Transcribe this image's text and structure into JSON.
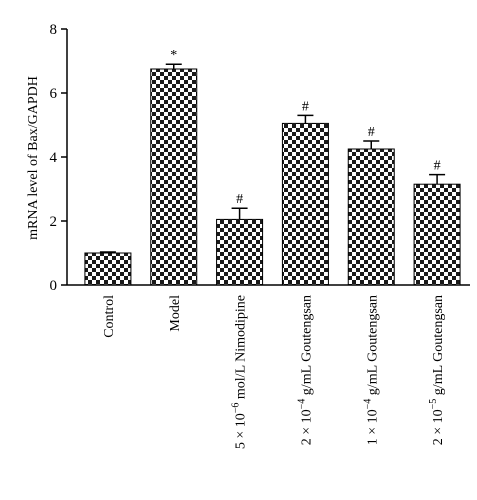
{
  "chart_data": {
    "type": "bar",
    "title": "",
    "xlabel": "",
    "ylabel": "mRNA level of Bax/GAPDH",
    "ylim": [
      0,
      8
    ],
    "yticks": [
      "0",
      "2",
      "4",
      "6",
      "8"
    ],
    "grid": false,
    "legend": "none",
    "bar_fill": "checkerboard",
    "colors": {
      "dark": "#1a1a1a",
      "light": "#ffffff",
      "axis": "#000000"
    },
    "categories": [
      {
        "label": "Control",
        "sci": null
      },
      {
        "label": "Model",
        "sci": null
      },
      {
        "label": "mol/L Nimodipine",
        "sci": {
          "mant": "5",
          "base": "10",
          "exp": "−6"
        }
      },
      {
        "label": "g/mL Goutengsan",
        "sci": {
          "mant": "2",
          "base": "10",
          "exp": "−4"
        }
      },
      {
        "label": "g/mL Goutengsan",
        "sci": {
          "mant": "1",
          "base": "10",
          "exp": "−4"
        }
      },
      {
        "label": "g/mL Goutengsan",
        "sci": {
          "mant": "2",
          "base": "10",
          "exp": "−5"
        }
      }
    ],
    "values": [
      1.0,
      6.75,
      2.05,
      5.05,
      4.25,
      3.15
    ],
    "errors": [
      0.03,
      0.15,
      0.35,
      0.25,
      0.25,
      0.3
    ],
    "annotations": [
      "",
      "*",
      "#",
      "#",
      "#",
      "#"
    ]
  }
}
